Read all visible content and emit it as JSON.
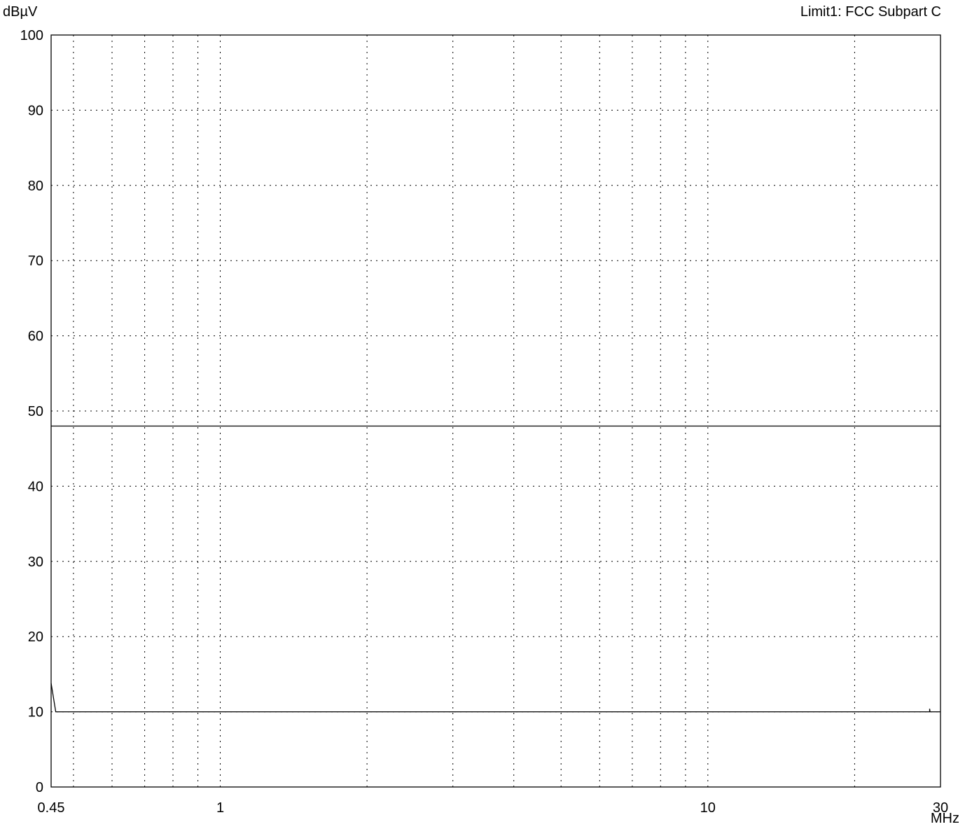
{
  "chart_data": {
    "type": "line",
    "ylabel": "dBµV",
    "xunit": "MHz",
    "limit_label": "Limit1: FCC Subpart C",
    "x_scale": "log",
    "xlim": [
      0.45,
      30
    ],
    "ylim": [
      0,
      100
    ],
    "y_ticks": [
      "0",
      "10",
      "20",
      "30",
      "40",
      "50",
      "60",
      "70",
      "80",
      "90",
      "100"
    ],
    "x_tick_labels": [
      {
        "value": 0.45,
        "label": "0.45"
      },
      {
        "value": 1,
        "label": "1"
      },
      {
        "value": 10,
        "label": "10"
      },
      {
        "value": 30,
        "label": "30"
      }
    ],
    "x_grid": [
      0.5,
      0.6,
      0.7,
      0.8,
      0.9,
      1,
      2,
      3,
      4,
      5,
      6,
      7,
      8,
      9,
      10,
      20
    ],
    "grid": "dotted",
    "series": [
      {
        "role": "limit",
        "color": "#000000",
        "points": [
          [
            0.45,
            48
          ],
          [
            30,
            48
          ]
        ]
      },
      {
        "role": "measurement",
        "color": "#000000",
        "points": [
          [
            0.45,
            13.8
          ],
          [
            0.46,
            10
          ],
          [
            28.5,
            10
          ],
          [
            28.5,
            10.4
          ],
          [
            28.55,
            10
          ],
          [
            30,
            10
          ]
        ]
      }
    ]
  }
}
